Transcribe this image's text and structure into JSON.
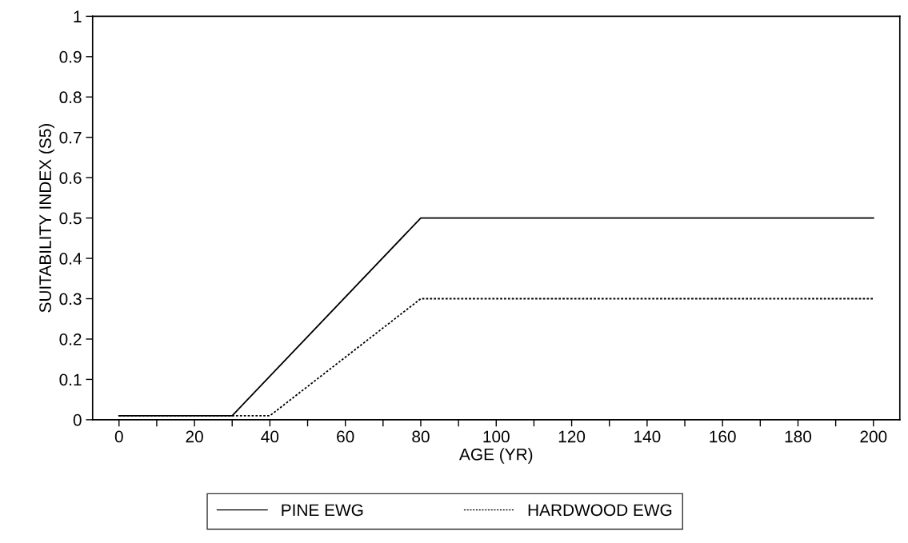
{
  "chart_data": {
    "type": "line",
    "xlabel": "AGE (YR)",
    "ylabel": "SUITABILITY INDEX (S5)",
    "xlim": [
      -7,
      207
    ],
    "ylim": [
      0,
      1
    ],
    "xticks": [
      0,
      {
        "value": 10,
        "label": null
      },
      20,
      {
        "value": 30,
        "label": null
      },
      40,
      {
        "value": 50,
        "label": null
      },
      60,
      {
        "value": 70,
        "label": null
      },
      80,
      {
        "value": 90,
        "label": null
      },
      100,
      {
        "value": 110,
        "label": null
      },
      120,
      {
        "value": 130,
        "label": null
      },
      140,
      {
        "value": 150,
        "label": null
      },
      160,
      {
        "value": 170,
        "label": null
      },
      180,
      {
        "value": 190,
        "label": null
      },
      200
    ],
    "yticks": [
      0,
      0.1,
      0.2,
      0.3,
      0.4,
      0.5,
      0.6,
      0.7,
      0.8,
      0.9,
      1
    ],
    "grid": false,
    "legend": "bottom",
    "marker": "none",
    "series": [
      {
        "name": "PINE EWG",
        "color": "#000000",
        "line_style": "solid",
        "x": [
          0,
          30,
          80,
          200
        ],
        "values": [
          0.01,
          0.01,
          0.5,
          0.5
        ]
      },
      {
        "name": "HARDWOOD EWG",
        "color": "#000000",
        "line_style": "dotted",
        "x": [
          0,
          40,
          80,
          200
        ],
        "values": [
          0.01,
          0.01,
          0.3,
          0.3
        ]
      }
    ]
  }
}
